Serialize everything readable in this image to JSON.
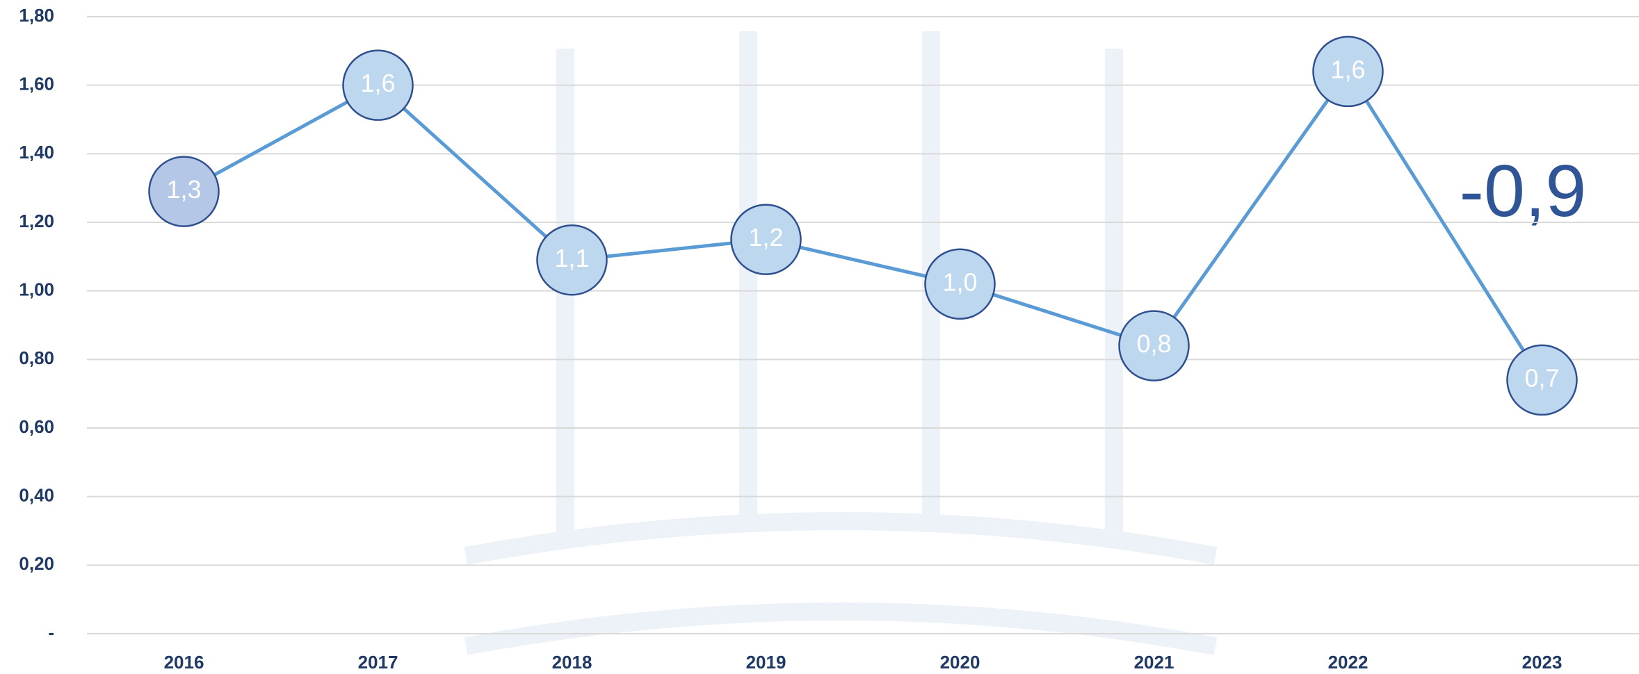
{
  "chart_data": {
    "type": "line",
    "categories": [
      "2016",
      "2017",
      "2018",
      "2019",
      "2020",
      "2021",
      "2022",
      "2023"
    ],
    "series": [
      {
        "color": "#5b9bd5",
        "values": [
          1.29,
          1.6,
          1.09,
          1.15,
          1.02,
          0.84,
          1.64,
          0.74
        ],
        "value_labels": [
          "1,3",
          "1,6",
          "1,1",
          "1,2",
          "1,0",
          "0,8",
          "1,6",
          "0,7"
        ]
      }
    ],
    "ylim": [
      0,
      1.8
    ],
    "yticks": [
      {
        "value": 0,
        "label": "-"
      },
      {
        "value": 0.2,
        "label": "0,20"
      },
      {
        "value": 0.4,
        "label": "0,40"
      },
      {
        "value": 0.6,
        "label": "0,60"
      },
      {
        "value": 0.8,
        "label": "0,80"
      },
      {
        "value": 1.0,
        "label": "1,00"
      },
      {
        "value": 1.2,
        "label": "1,20"
      },
      {
        "value": 1.4,
        "label": "1,40"
      },
      {
        "value": 1.6,
        "label": "1,60"
      },
      {
        "value": 1.8,
        "label": "1,80"
      }
    ],
    "grid": true,
    "annotations": [
      "-0,9"
    ]
  }
}
